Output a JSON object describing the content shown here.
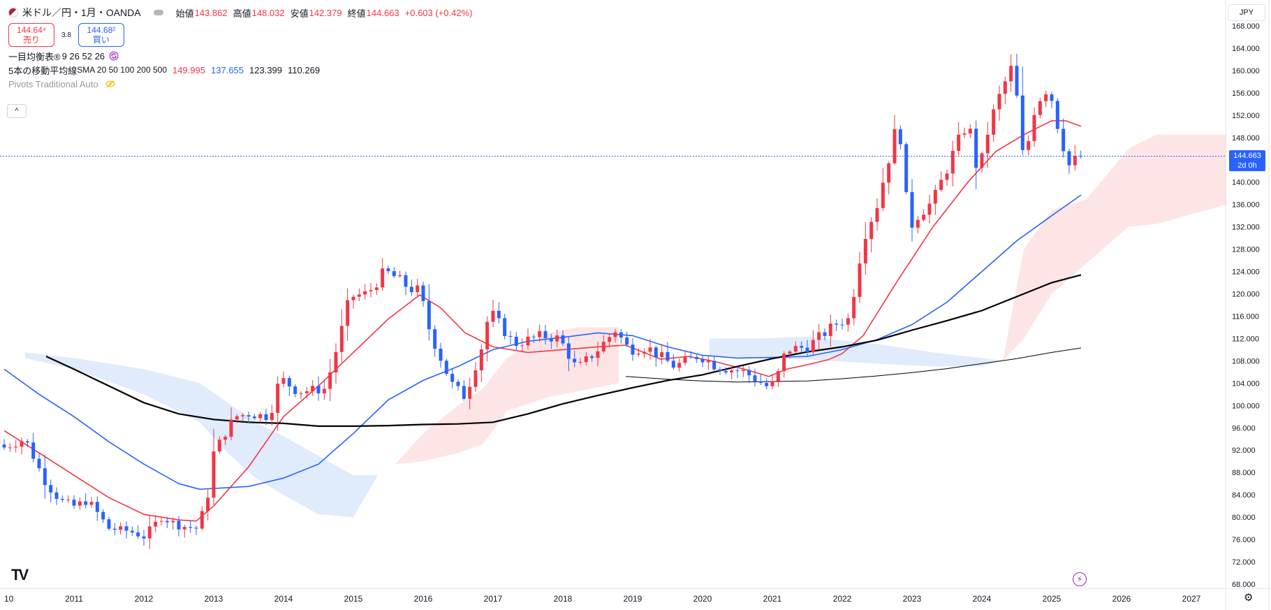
{
  "header": {
    "symbol_title": "米ドル／円・1月・OANDA",
    "ohlc": [
      {
        "label": "始値",
        "value": "143.862"
      },
      {
        "label": "高値",
        "value": "148.032"
      },
      {
        "label": "安値",
        "value": "142.379"
      },
      {
        "label": "終値",
        "value": "144.663"
      }
    ],
    "change": "+0.603 (+0.42%)",
    "sell_price": "144.64⁴",
    "sell_label": "売り",
    "spread": "3.8",
    "buy_price": "144.68²",
    "buy_label": "買い"
  },
  "indicators": {
    "ichimoku": {
      "name": "一目均衡表®",
      "params": "9 26 52 26"
    },
    "sma": {
      "name": "5本の移動平均線",
      "params": "SMA 20 50 100 200 500",
      "values": [
        "149.995",
        "137.655",
        "123.399",
        "110.269"
      ]
    },
    "pivots": {
      "name": "Pivots Traditional Auto"
    }
  },
  "collapse_label": "^",
  "currency": "JPY",
  "last_price": {
    "value": "144.663",
    "countdown": "2d 0h"
  },
  "colors": {
    "up": "#f23645",
    "down": "#2962ff",
    "sma20": "#f23645",
    "sma50": "#2962ff",
    "sma100": "#000000",
    "sma200": "#000000",
    "cloud_bull": "#fde0e2",
    "cloud_bear": "#dbe8fb"
  },
  "chart_data": {
    "type": "candlestick",
    "interval": "1M",
    "ylim": [
      68,
      168
    ],
    "y_ticks": [
      "68.000",
      "72.000",
      "76.000",
      "80.000",
      "84.000",
      "88.000",
      "92.000",
      "96.000",
      "100.000",
      "104.000",
      "108.000",
      "112.000",
      "116.000",
      "120.000",
      "124.000",
      "128.000",
      "132.000",
      "136.000",
      "140.000",
      "144.000",
      "148.000",
      "152.000",
      "156.000",
      "160.000",
      "164.000",
      "168.000"
    ],
    "x_ticks": [
      {
        "year": 2010,
        "label": "10"
      },
      {
        "year": 2011,
        "label": "2011"
      },
      {
        "year": 2012,
        "label": "2012"
      },
      {
        "year": 2013,
        "label": "2013"
      },
      {
        "year": 2014,
        "label": "2014"
      },
      {
        "year": 2015,
        "label": "2015"
      },
      {
        "year": 2016,
        "label": "2016"
      },
      {
        "year": 2017,
        "label": "2017"
      },
      {
        "year": 2018,
        "label": "2018"
      },
      {
        "year": 2019,
        "label": "2019"
      },
      {
        "year": 2020,
        "label": "2020"
      },
      {
        "year": 2021,
        "label": "2021"
      },
      {
        "year": 2022,
        "label": "2022"
      },
      {
        "year": 2023,
        "label": "2023"
      },
      {
        "year": 2024,
        "label": "2024"
      },
      {
        "year": 2025,
        "label": "2025"
      },
      {
        "year": 2026,
        "label": "2026"
      },
      {
        "year": 2027,
        "label": "2027"
      }
    ],
    "close_anchors": [
      [
        2010.0,
        92.5
      ],
      [
        2010.3,
        94.0
      ],
      [
        2010.6,
        86.0
      ],
      [
        2010.8,
        83.0
      ],
      [
        2011.0,
        82.0
      ],
      [
        2011.2,
        83.0
      ],
      [
        2011.5,
        78.0
      ],
      [
        2011.8,
        77.5
      ],
      [
        2012.0,
        76.5
      ],
      [
        2012.25,
        80.0
      ],
      [
        2012.5,
        78.5
      ],
      [
        2012.75,
        78.0
      ],
      [
        2012.9,
        82.5
      ],
      [
        2013.0,
        91.5
      ],
      [
        2013.3,
        98.0
      ],
      [
        2013.5,
        98.5
      ],
      [
        2013.8,
        98.0
      ],
      [
        2013.95,
        105.0
      ],
      [
        2014.2,
        102.5
      ],
      [
        2014.6,
        103.0
      ],
      [
        2014.8,
        112.0
      ],
      [
        2014.95,
        119.5
      ],
      [
        2015.2,
        120.0
      ],
      [
        2015.45,
        124.0
      ],
      [
        2015.6,
        123.0
      ],
      [
        2015.8,
        121.0
      ],
      [
        2015.95,
        120.5
      ],
      [
        2016.1,
        113.0
      ],
      [
        2016.4,
        104.0
      ],
      [
        2016.6,
        101.5
      ],
      [
        2016.85,
        111.0
      ],
      [
        2016.95,
        117.0
      ],
      [
        2017.3,
        111.0
      ],
      [
        2017.7,
        112.5
      ],
      [
        2017.95,
        112.0
      ],
      [
        2018.2,
        106.5
      ],
      [
        2018.5,
        110.0
      ],
      [
        2018.75,
        113.5
      ],
      [
        2018.95,
        110.0
      ],
      [
        2019.2,
        110.5
      ],
      [
        2019.6,
        107.0
      ],
      [
        2019.95,
        109.0
      ],
      [
        2020.2,
        107.0
      ],
      [
        2020.6,
        106.0
      ],
      [
        2020.95,
        103.2
      ],
      [
        2021.05,
        104.5
      ],
      [
        2021.2,
        110.0
      ],
      [
        2021.5,
        110.5
      ],
      [
        2021.8,
        113.5
      ],
      [
        2021.95,
        115.0
      ],
      [
        2022.1,
        115.5
      ],
      [
        2022.3,
        130.0
      ],
      [
        2022.5,
        136.0
      ],
      [
        2022.75,
        148.5
      ],
      [
        2022.85,
        148.0
      ],
      [
        2022.95,
        131.5
      ],
      [
        2023.1,
        134.5
      ],
      [
        2023.3,
        136.5
      ],
      [
        2023.55,
        144.0
      ],
      [
        2023.8,
        151.0
      ],
      [
        2023.95,
        141.0
      ],
      [
        2024.1,
        150.0
      ],
      [
        2024.3,
        157.0
      ],
      [
        2024.45,
        161.0
      ],
      [
        2024.6,
        143.0
      ],
      [
        2024.75,
        153.0
      ],
      [
        2024.9,
        157.0
      ],
      [
        2025.0,
        155.0
      ],
      [
        2025.1,
        149.5
      ],
      [
        2025.25,
        143.0
      ],
      [
        2025.35,
        144.0
      ],
      [
        2025.42,
        144.66
      ]
    ],
    "sma": [
      {
        "name": "SMA 20",
        "color": "#f23645",
        "points": [
          [
            2010.0,
            95.5
          ],
          [
            2010.5,
            91.5
          ],
          [
            2011.0,
            87.5
          ],
          [
            2011.5,
            83.5
          ],
          [
            2012.0,
            80.5
          ],
          [
            2012.5,
            79.5
          ],
          [
            2012.75,
            79.3
          ],
          [
            2013.0,
            82.0
          ],
          [
            2013.5,
            89.0
          ],
          [
            2014.0,
            98.0
          ],
          [
            2014.5,
            103.5
          ],
          [
            2015.0,
            109.5
          ],
          [
            2015.5,
            115.5
          ],
          [
            2015.95,
            119.8
          ],
          [
            2016.25,
            117.5
          ],
          [
            2016.6,
            113.0
          ],
          [
            2017.0,
            110.5
          ],
          [
            2017.5,
            109.5
          ],
          [
            2018.0,
            110.0
          ],
          [
            2018.5,
            110.5
          ],
          [
            2018.9,
            110.8
          ],
          [
            2019.4,
            108.3
          ],
          [
            2019.8,
            108.8
          ],
          [
            2020.2,
            107.8
          ],
          [
            2020.6,
            106.5
          ],
          [
            2020.95,
            105.2
          ],
          [
            2021.2,
            106.5
          ],
          [
            2021.5,
            107.3
          ],
          [
            2021.8,
            108.2
          ],
          [
            2022.0,
            109.3
          ],
          [
            2022.3,
            112.5
          ],
          [
            2022.8,
            122.5
          ],
          [
            2023.3,
            132.0
          ],
          [
            2023.8,
            140.0
          ],
          [
            2024.2,
            145.5
          ],
          [
            2024.6,
            148.5
          ],
          [
            2025.0,
            151.0
          ],
          [
            2025.2,
            151.0
          ],
          [
            2025.42,
            150.0
          ]
        ]
      },
      {
        "name": "SMA 50",
        "color": "#2962ff",
        "points": [
          [
            2010.0,
            106.5
          ],
          [
            2010.5,
            102.0
          ],
          [
            2011.0,
            98.0
          ],
          [
            2011.5,
            93.5
          ],
          [
            2012.0,
            89.5
          ],
          [
            2012.5,
            86.0
          ],
          [
            2012.8,
            85.0
          ],
          [
            2013.5,
            85.5
          ],
          [
            2014.0,
            87.0
          ],
          [
            2014.5,
            89.5
          ],
          [
            2015.0,
            95.0
          ],
          [
            2015.5,
            101.0
          ],
          [
            2016.0,
            104.5
          ],
          [
            2016.5,
            107.0
          ],
          [
            2017.0,
            110.0
          ],
          [
            2017.5,
            111.5
          ],
          [
            2018.0,
            112.2
          ],
          [
            2018.5,
            113.0
          ],
          [
            2019.0,
            112.5
          ],
          [
            2019.5,
            110.5
          ],
          [
            2020.0,
            109.0
          ],
          [
            2020.5,
            108.5
          ],
          [
            2021.0,
            108.6
          ],
          [
            2021.5,
            108.8
          ],
          [
            2022.0,
            110.0
          ],
          [
            2022.5,
            111.8
          ],
          [
            2023.0,
            114.5
          ],
          [
            2023.5,
            118.5
          ],
          [
            2024.0,
            124.0
          ],
          [
            2024.5,
            129.5
          ],
          [
            2025.0,
            134.0
          ],
          [
            2025.42,
            137.7
          ]
        ]
      },
      {
        "name": "SMA 100",
        "color": "#000000",
        "width": 2.2,
        "points": [
          [
            2010.6,
            108.8
          ],
          [
            2011.0,
            106.5
          ],
          [
            2011.5,
            103.5
          ],
          [
            2012.0,
            100.5
          ],
          [
            2012.5,
            98.5
          ],
          [
            2013.0,
            97.5
          ],
          [
            2013.5,
            97.0
          ],
          [
            2014.0,
            96.8
          ],
          [
            2014.5,
            96.3
          ],
          [
            2015.0,
            96.3
          ],
          [
            2015.5,
            96.4
          ],
          [
            2016.0,
            96.6
          ],
          [
            2016.5,
            96.7
          ],
          [
            2017.0,
            97.0
          ],
          [
            2017.5,
            98.5
          ],
          [
            2018.0,
            100.3
          ],
          [
            2018.5,
            101.8
          ],
          [
            2019.0,
            103.2
          ],
          [
            2019.5,
            104.5
          ],
          [
            2020.0,
            105.5
          ],
          [
            2020.5,
            107.0
          ],
          [
            2021.0,
            108.4
          ],
          [
            2021.5,
            109.6
          ],
          [
            2022.0,
            110.5
          ],
          [
            2022.5,
            111.7
          ],
          [
            2023.0,
            113.5
          ],
          [
            2023.5,
            115.2
          ],
          [
            2024.0,
            117.0
          ],
          [
            2024.5,
            119.5
          ],
          [
            2025.0,
            122.0
          ],
          [
            2025.42,
            123.4
          ]
        ]
      },
      {
        "name": "SMA 200",
        "color": "#000000",
        "width": 1.0,
        "points": [
          [
            2018.9,
            105.2
          ],
          [
            2019.5,
            104.7
          ],
          [
            2020.0,
            104.4
          ],
          [
            2020.5,
            104.2
          ],
          [
            2021.0,
            104.3
          ],
          [
            2021.5,
            104.4
          ],
          [
            2022.0,
            104.8
          ],
          [
            2022.5,
            105.3
          ],
          [
            2023.0,
            105.9
          ],
          [
            2023.5,
            106.6
          ],
          [
            2024.0,
            107.5
          ],
          [
            2024.5,
            108.4
          ],
          [
            2025.0,
            109.5
          ],
          [
            2025.42,
            110.3
          ]
        ]
      }
    ],
    "cloud": [
      {
        "kind": "bear",
        "upper": [
          [
            2010.3,
            109.5
          ],
          [
            2011.0,
            108.5
          ],
          [
            2012.0,
            106.5
          ],
          [
            2012.8,
            104.0
          ],
          [
            2013.2,
            100.5
          ],
          [
            2013.6,
            97.0
          ],
          [
            2014.0,
            94.5
          ],
          [
            2014.5,
            91.0
          ],
          [
            2015.0,
            87.5
          ],
          [
            2015.35,
            87.5
          ]
        ],
        "lower": [
          [
            2010.3,
            108.5
          ],
          [
            2011.0,
            106.5
          ],
          [
            2012.0,
            102.0
          ],
          [
            2012.8,
            97.0
          ],
          [
            2013.2,
            91.5
          ],
          [
            2013.6,
            87.0
          ],
          [
            2014.0,
            84.0
          ],
          [
            2014.5,
            80.5
          ],
          [
            2015.0,
            80.0
          ],
          [
            2015.35,
            87.5
          ]
        ]
      },
      {
        "kind": "bull",
        "upper": [
          [
            2015.6,
            89.5
          ],
          [
            2016.0,
            95.0
          ],
          [
            2016.5,
            100.0
          ],
          [
            2016.85,
            103.0
          ],
          [
            2017.2,
            108.5
          ],
          [
            2017.8,
            113.0
          ],
          [
            2018.2,
            114.0
          ],
          [
            2018.8,
            114.0
          ]
        ],
        "lower": [
          [
            2015.6,
            89.5
          ],
          [
            2016.0,
            90.0
          ],
          [
            2016.5,
            91.5
          ],
          [
            2016.85,
            93.0
          ],
          [
            2017.2,
            99.0
          ],
          [
            2017.8,
            101.5
          ],
          [
            2018.2,
            102.5
          ],
          [
            2018.8,
            104.0
          ]
        ]
      },
      {
        "kind": "bear",
        "upper": [
          [
            2020.1,
            112.0
          ],
          [
            2020.8,
            112.0
          ],
          [
            2021.5,
            112.3
          ],
          [
            2022.5,
            111.0
          ],
          [
            2023.3,
            109.5
          ],
          [
            2024.0,
            108.5
          ],
          [
            2024.3,
            108.0
          ]
        ],
        "lower": [
          [
            2020.1,
            109.0
          ],
          [
            2020.8,
            108.5
          ],
          [
            2021.5,
            108.2
          ],
          [
            2022.5,
            107.5
          ],
          [
            2023.3,
            107.0
          ],
          [
            2024.0,
            107.0
          ],
          [
            2024.3,
            108.0
          ]
        ]
      },
      {
        "kind": "bull",
        "upper": [
          [
            2024.3,
            108.0
          ],
          [
            2024.6,
            128.0
          ],
          [
            2025.0,
            135.0
          ],
          [
            2025.5,
            137.0
          ],
          [
            2026.1,
            146.0
          ],
          [
            2026.5,
            148.5
          ],
          [
            2027.5,
            148.5
          ]
        ],
        "lower": [
          [
            2024.3,
            108.0
          ],
          [
            2024.6,
            112.0
          ],
          [
            2025.0,
            120.0
          ],
          [
            2025.5,
            125.5
          ],
          [
            2026.1,
            132.0
          ],
          [
            2026.5,
            132.5
          ],
          [
            2027.5,
            136.0
          ]
        ]
      }
    ]
  }
}
